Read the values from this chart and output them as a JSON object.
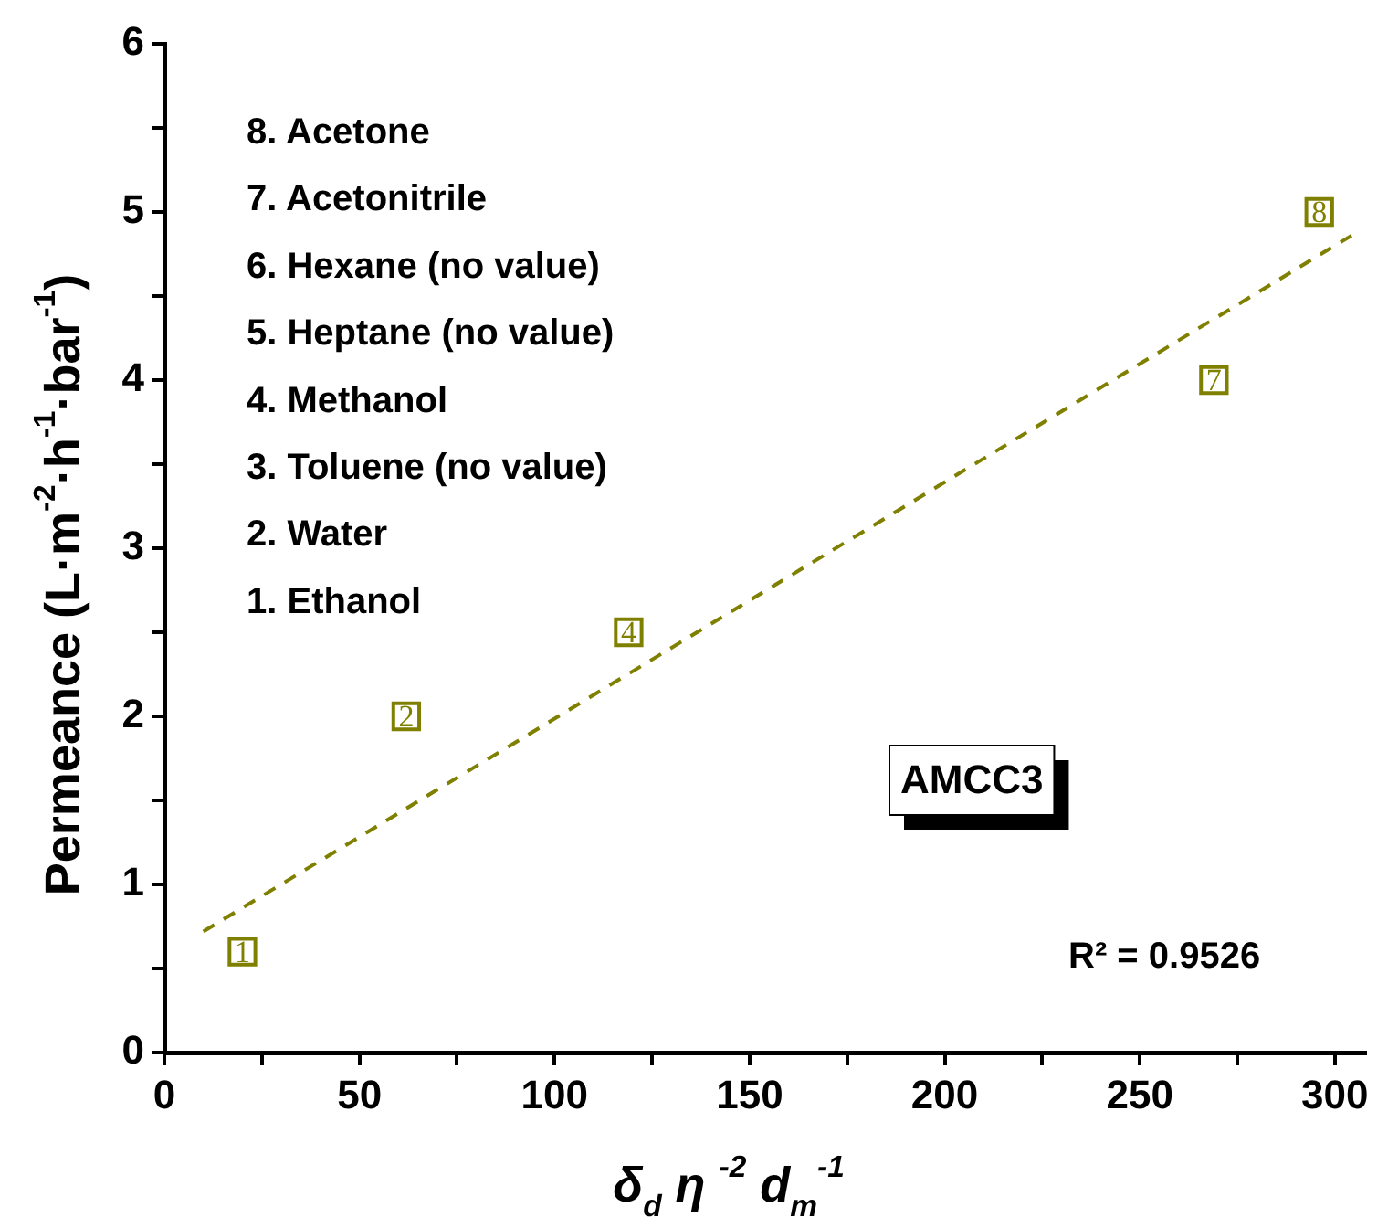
{
  "chart_data": {
    "type": "scatter",
    "xlabel": "δ$_{d}$ η $^{-2}$ d$_{m}$$^{-1}$",
    "ylabel": "Permeance (L·m$^{-2}$·h$^{-1}$·bar$^{-1}$)",
    "xlim": [
      0,
      308
    ],
    "ylim": [
      0,
      6
    ],
    "xticks": [
      0,
      {
        "value": 25,
        "label": null
      },
      50,
      {
        "value": 75,
        "label": null
      },
      100,
      {
        "value": 125,
        "label": null
      },
      150,
      {
        "value": 175,
        "label": null
      },
      200,
      {
        "value": 225,
        "label": null
      },
      250,
      {
        "value": 275,
        "label": null
      },
      300
    ],
    "yticks": [
      0,
      {
        "value": 0.5,
        "label": null
      },
      1,
      {
        "value": 1.5,
        "label": null
      },
      2,
      {
        "value": 2.5,
        "label": null
      },
      3,
      {
        "value": 3.5,
        "label": null
      },
      4,
      {
        "value": 4.5,
        "label": null
      },
      5,
      {
        "value": 5.5,
        "label": null
      },
      6
    ],
    "grid": false,
    "legend": false,
    "marker": "square",
    "series": [
      {
        "color": "#808000",
        "x": [
          20,
          62,
          119,
          269,
          296
        ],
        "values": [
          0.6,
          2,
          2.5,
          4,
          5
        ]
      },
      {
        "type": "line",
        "color": "#808000",
        "line_style": "dashed",
        "marker": "none",
        "x": [
          10,
          305
        ],
        "values": [
          0.72,
          4.87
        ]
      }
    ],
    "annotations": [
      "8. Acetone",
      "7. Acetonitrile",
      "6. Hexane (no value)",
      "5. Heptane (no value)",
      "4. Methanol",
      "3. Toluene (no value)",
      "2. Water",
      "1. Ethanol",
      "AMCC3",
      "R² = 0.9526",
      {
        "text": "1",
        "x": 20,
        "y": 0.6
      },
      {
        "text": "2",
        "x": 62,
        "y": 2
      },
      {
        "text": "4",
        "x": 119,
        "y": 2.5
      },
      {
        "text": "7",
        "x": 269,
        "y": 4
      },
      {
        "text": "8",
        "x": 296,
        "y": 5
      }
    ]
  }
}
